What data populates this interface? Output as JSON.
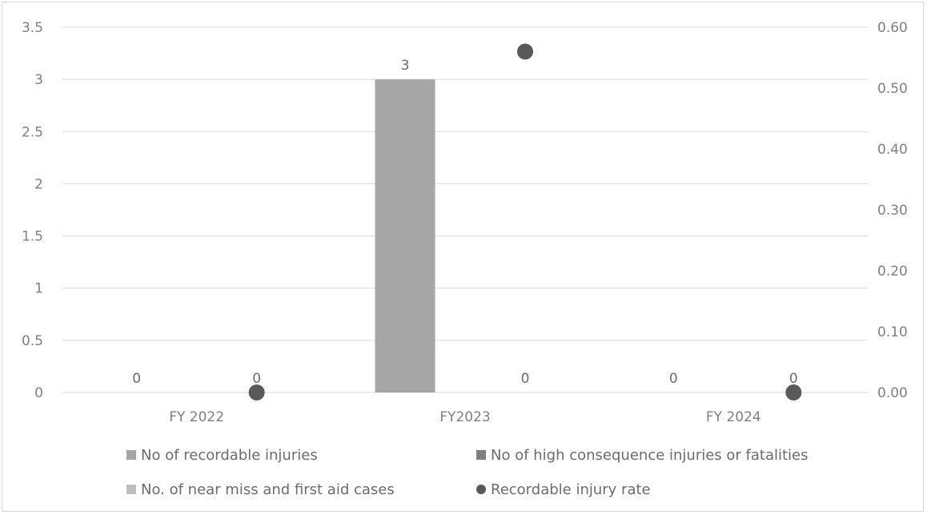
{
  "chart_data": {
    "type": "bar",
    "categories": [
      "FY 2022",
      "FY2023",
      "FY 2024"
    ],
    "series": [
      {
        "name": "No of recordable injuries",
        "kind": "bar",
        "axis": "left",
        "values": [
          0,
          3,
          0
        ],
        "labels": [
          "0",
          "3",
          "0"
        ],
        "color": "#a6a6a6"
      },
      {
        "name": "No of high consequence injuries or fatalities",
        "kind": "bar",
        "axis": "left",
        "values": [
          0,
          0,
          0
        ],
        "labels": [
          "",
          "",
          ""
        ],
        "color": "#7f7f7f"
      },
      {
        "name": "No. of near miss and first aid cases",
        "kind": "bar",
        "axis": "left",
        "values": [
          0,
          0,
          0
        ],
        "labels": [
          "0",
          "0",
          "0"
        ],
        "color": "#bfbfbf"
      },
      {
        "name": "Recordable injury rate",
        "kind": "scatter",
        "axis": "right",
        "values": [
          0,
          0.56,
          0
        ],
        "color": "#595959"
      }
    ],
    "y_left": {
      "min": 0,
      "max": 3.5,
      "ticks": [
        "0",
        "0.5",
        "1",
        "1.5",
        "2",
        "2.5",
        "3",
        "3.5"
      ]
    },
    "y_right": {
      "min": 0,
      "max": 0.6,
      "ticks": [
        "0.00",
        "0.10",
        "0.20",
        "0.30",
        "0.40",
        "0.50",
        "0.60"
      ]
    },
    "grid": true,
    "legend_position": "bottom"
  }
}
